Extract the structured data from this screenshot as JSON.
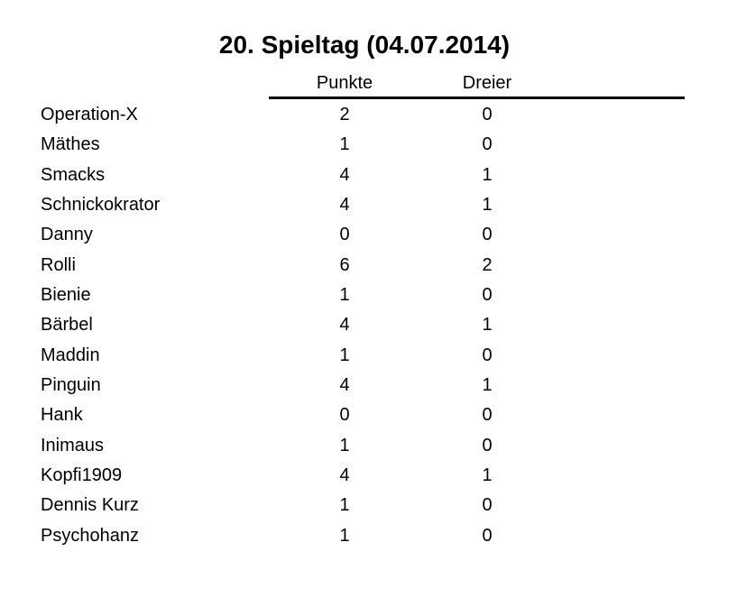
{
  "title": "20. Spieltag (04.07.2014)",
  "table": {
    "columns": [
      "Punkte",
      "Dreier"
    ],
    "rows": [
      {
        "name": "Operation-X",
        "punkte": 2,
        "dreier": 0
      },
      {
        "name": "Mäthes",
        "punkte": 1,
        "dreier": 0
      },
      {
        "name": "Smacks",
        "punkte": 4,
        "dreier": 1
      },
      {
        "name": "Schnickokrator",
        "punkte": 4,
        "dreier": 1
      },
      {
        "name": "Danny",
        "punkte": 0,
        "dreier": 0
      },
      {
        "name": "Rolli",
        "punkte": 6,
        "dreier": 2
      },
      {
        "name": "Bienie",
        "punkte": 1,
        "dreier": 0
      },
      {
        "name": "Bärbel",
        "punkte": 4,
        "dreier": 1
      },
      {
        "name": "Maddin",
        "punkte": 1,
        "dreier": 0
      },
      {
        "name": "Pinguin",
        "punkte": 4,
        "dreier": 1
      },
      {
        "name": "Hank",
        "punkte": 0,
        "dreier": 0
      },
      {
        "name": "Inimaus",
        "punkte": 1,
        "dreier": 0
      },
      {
        "name": "Kopfi1909",
        "punkte": 4,
        "dreier": 1
      },
      {
        "name": "Dennis Kurz",
        "punkte": 1,
        "dreier": 0
      },
      {
        "name": "Psychohanz",
        "punkte": 1,
        "dreier": 0
      }
    ]
  },
  "colors": {
    "text": "#000000",
    "background": "#ffffff",
    "rule": "#000000"
  }
}
